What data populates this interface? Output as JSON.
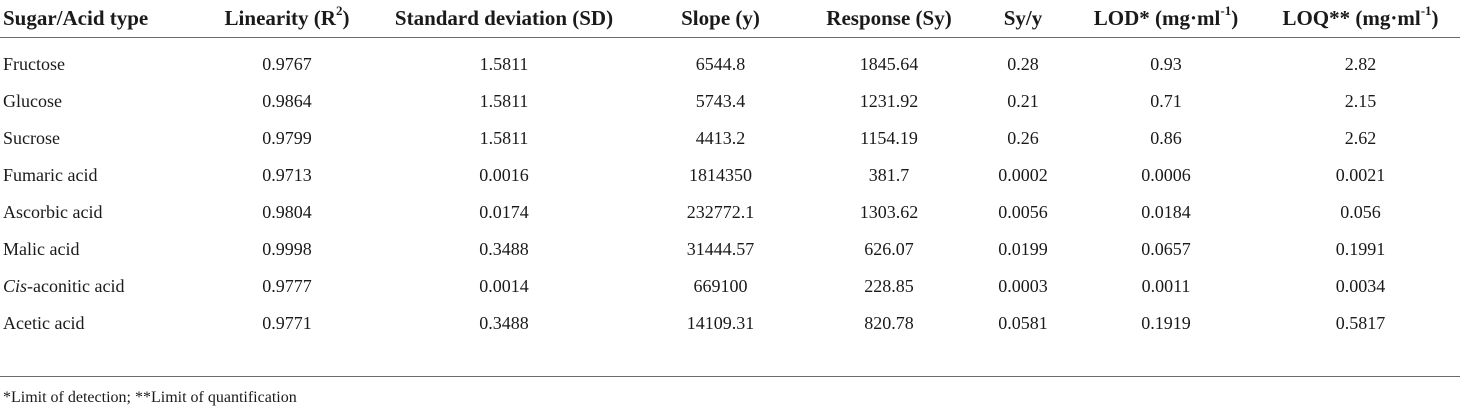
{
  "table": {
    "headers": [
      {
        "text": "Sugar/Acid type",
        "sup": "",
        "suffix": ""
      },
      {
        "text": "Linearity (R",
        "sup": "2",
        "suffix": ")"
      },
      {
        "text": "Standard deviation (SD)",
        "sup": "",
        "suffix": ""
      },
      {
        "text": "Slope (y)",
        "sup": "",
        "suffix": ""
      },
      {
        "text": "Response (Sy)",
        "sup": "",
        "suffix": ""
      },
      {
        "text": "Sy/y",
        "sup": "",
        "suffix": ""
      },
      {
        "text": "LOD* (mg·ml",
        "sup": "-1",
        "suffix": ")"
      },
      {
        "text": "LOQ** (mg·ml",
        "sup": "-1",
        "suffix": ")"
      }
    ],
    "rows": [
      {
        "name_italic": "",
        "name": "Fructose",
        "cells": [
          "0.9767",
          "1.5811",
          "6544.8",
          "1845.64",
          "0.28",
          "0.93",
          "2.82"
        ]
      },
      {
        "name_italic": "",
        "name": "Glucose",
        "cells": [
          "0.9864",
          "1.5811",
          "5743.4",
          "1231.92",
          "0.21",
          "0.71",
          "2.15"
        ]
      },
      {
        "name_italic": "",
        "name": "Sucrose",
        "cells": [
          "0.9799",
          "1.5811",
          "4413.2",
          "1154.19",
          "0.26",
          "0.86",
          "2.62"
        ]
      },
      {
        "name_italic": "",
        "name": "Fumaric acid",
        "cells": [
          "0.9713",
          "0.0016",
          "1814350",
          "381.7",
          "0.0002",
          "0.0006",
          "0.0021"
        ]
      },
      {
        "name_italic": "",
        "name": "Ascorbic acid",
        "cells": [
          "0.9804",
          "0.0174",
          "232772.1",
          "1303.62",
          "0.0056",
          "0.0184",
          "0.056"
        ]
      },
      {
        "name_italic": "",
        "name": "Malic acid",
        "cells": [
          "0.9998",
          "0.3488",
          "31444.57",
          "626.07",
          "0.0199",
          "0.0657",
          "0.1991"
        ]
      },
      {
        "name_italic": "Cis",
        "name": "-aconitic acid",
        "cells": [
          "0.9777",
          "0.0014",
          "669100",
          "228.85",
          "0.0003",
          "0.0011",
          "0.0034"
        ]
      },
      {
        "name_italic": "",
        "name": "Acetic acid",
        "cells": [
          "0.9771",
          "0.3488",
          "14109.31",
          "820.78",
          "0.0581",
          "0.1919",
          "0.5817"
        ]
      }
    ]
  },
  "footnote": "*Limit of detection; **Limit of quantification"
}
